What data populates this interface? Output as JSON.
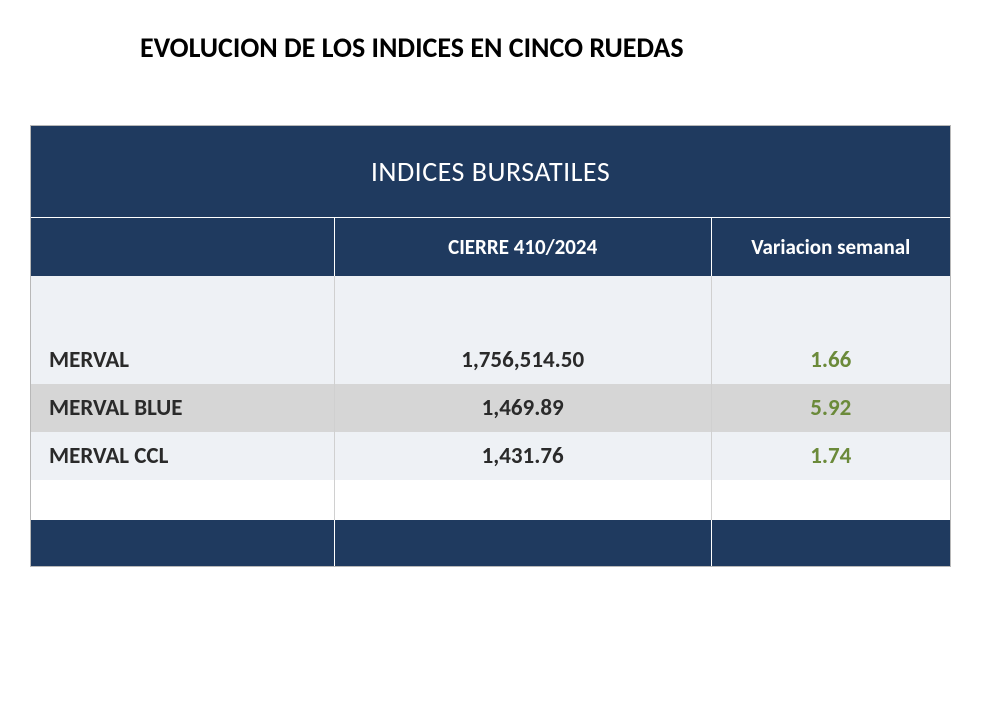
{
  "title": "EVOLUCION DE LOS INDICES EN CINCO RUEDAS",
  "table": {
    "type": "table",
    "header": "INDICES BURSATILES",
    "columns": {
      "name": "",
      "close": "CIERRE 410/2024",
      "variation": "Variacion semanal"
    },
    "column_widths_pct": [
      33,
      41,
      26
    ],
    "colors": {
      "header_bg": "#1f3a5f",
      "header_text": "#ffffff",
      "row_light_bg": "#eef1f5",
      "row_mid_bg": "#d6d6d6",
      "text": "#2a2a2a",
      "positive": "#6b8a3a",
      "border": "#d0d0d0",
      "page_bg": "#ffffff"
    },
    "fontsize": {
      "title": 28,
      "header": 28,
      "subheader": 21,
      "cell": 23
    },
    "rows": [
      {
        "name": "MERVAL",
        "close": "1,756,514.50",
        "variation": "1.66",
        "var_color": "#6b8a3a",
        "shade": "light"
      },
      {
        "name": "MERVAL BLUE",
        "close": "1,469.89",
        "variation": "5.92",
        "var_color": "#6b8a3a",
        "shade": "mid"
      },
      {
        "name": "MERVAL CCL",
        "close": "1,431.76",
        "variation": "1.74",
        "var_color": "#6b8a3a",
        "shade": "light"
      }
    ]
  }
}
